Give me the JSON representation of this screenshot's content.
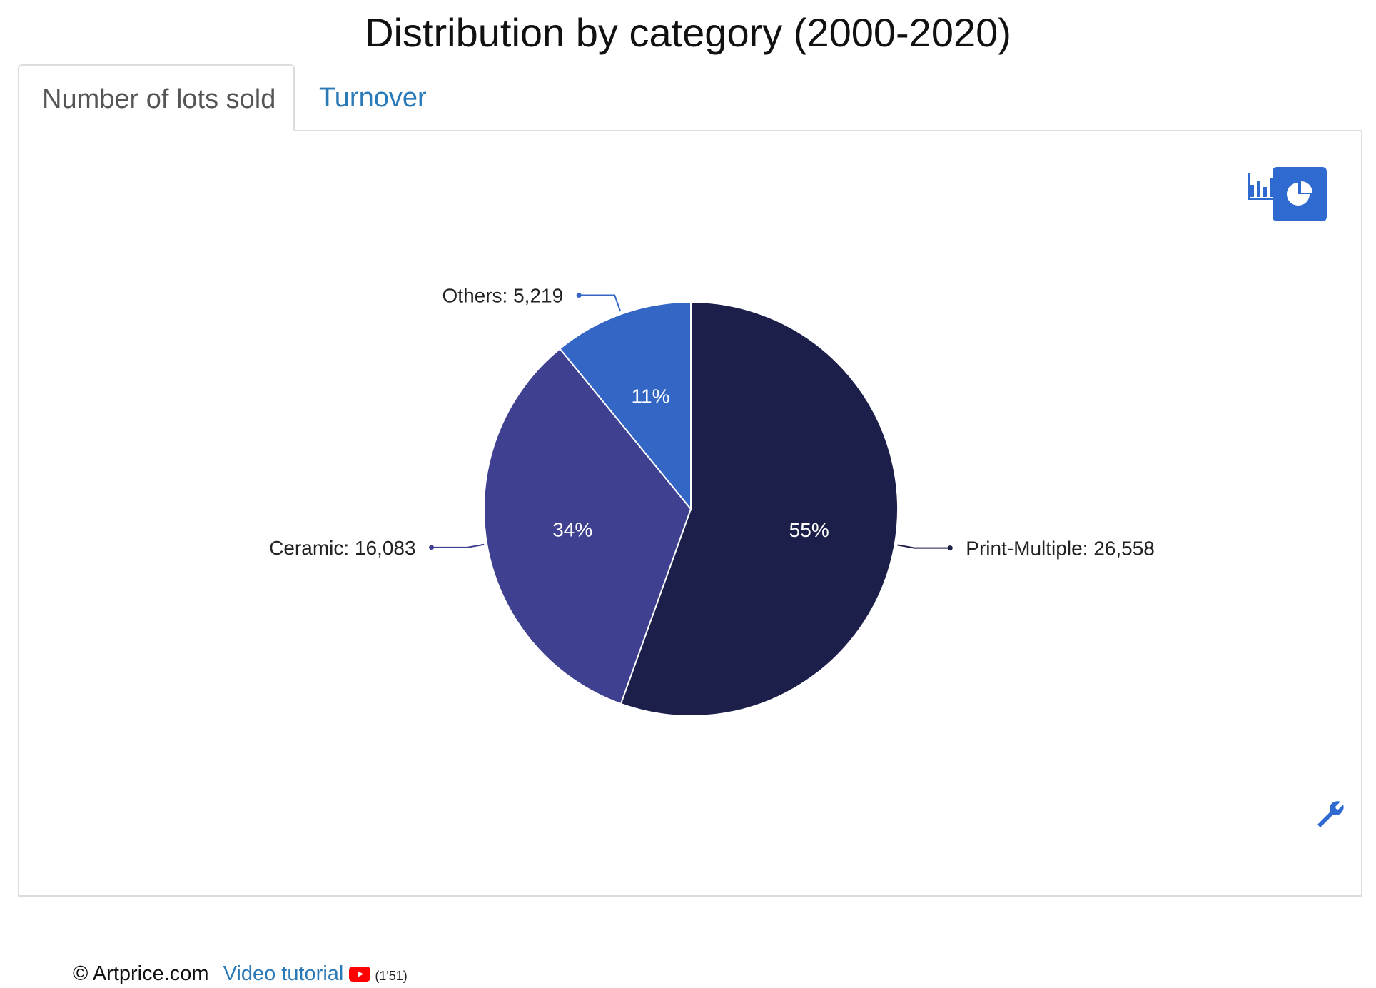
{
  "page": {
    "title": "Distribution by category (2000-2020)"
  },
  "tabs": [
    {
      "label": "Number of lots sold",
      "active": true
    },
    {
      "label": "Turnover",
      "active": false
    }
  ],
  "toolbar": {
    "bar_toggle_icon": "bar-chart-icon",
    "pie_toggle_icon": "pie-chart-icon",
    "pie_active": true,
    "settings_icon": "wrench-icon"
  },
  "footer": {
    "copyright": "© Artprice.com",
    "video_link": "Video tutorial",
    "video_icon": "youtube-icon",
    "duration": "(1'51)"
  },
  "colors": {
    "accent": "#2f6ad1",
    "link": "#2a7ab8",
    "youtube_red": "#ff0000"
  },
  "chart_data": {
    "type": "pie",
    "title": "",
    "slices": [
      {
        "name": "Print-Multiple",
        "value": 26558,
        "value_label": "26,558",
        "percent_label": "55%",
        "color": "#1c1f4a"
      },
      {
        "name": "Ceramic",
        "value": 16083,
        "value_label": "16,083",
        "percent_label": "34%",
        "color": "#3f4190"
      },
      {
        "name": "Others",
        "value": 5219,
        "value_label": "5,219",
        "percent_label": "11%",
        "color": "#3466c6"
      }
    ],
    "start_position": "12 o'clock",
    "direction": "clockwise",
    "labels": "outside with connectors, percentages inside"
  }
}
